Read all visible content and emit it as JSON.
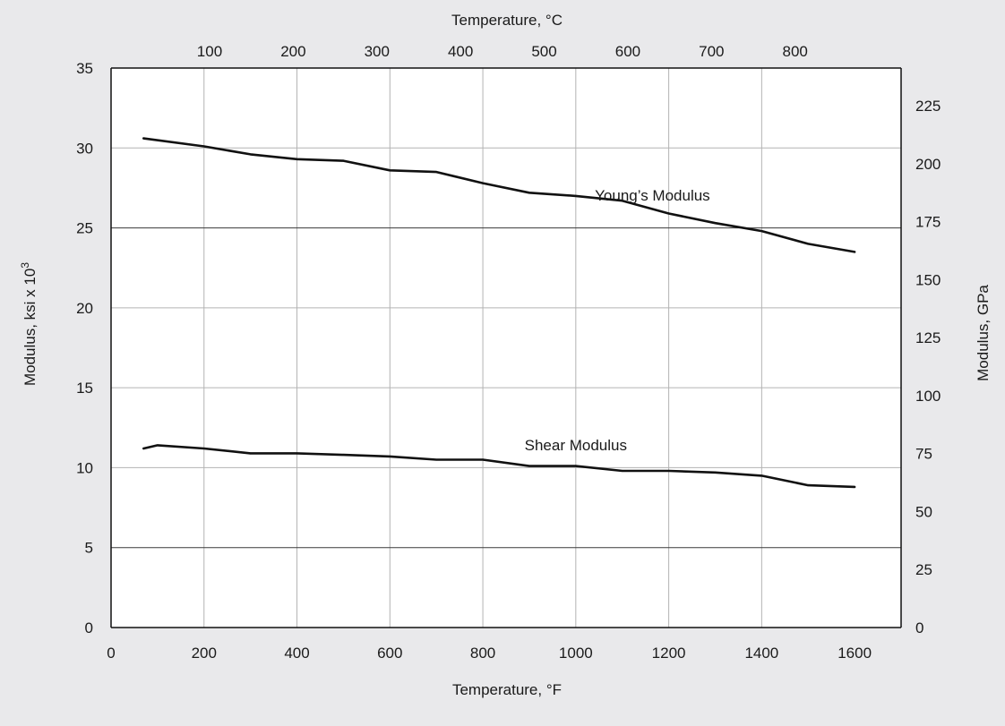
{
  "chart_data": {
    "type": "line",
    "xlabel": "Temperature, °F",
    "x2label": "Temperature, °C",
    "ylabel": "Modulus, ksi x 10",
    "ylabel_sup": "3",
    "y2label": "Modulus, GPa",
    "xlim": [
      0,
      1700
    ],
    "ylim": [
      0,
      35
    ],
    "x2lim_c": [
      -17.78,
      926.67
    ],
    "y2lim": [
      0,
      241.3
    ],
    "x_ticks": [
      0,
      200,
      400,
      600,
      800,
      1000,
      1200,
      1400,
      1600
    ],
    "x_tick_labels": [
      "0",
      "200",
      "400",
      "600",
      "800",
      "1000",
      "1200",
      "1400",
      "1600"
    ],
    "x2_ticks": [
      100,
      200,
      300,
      400,
      500,
      600,
      700,
      800
    ],
    "x2_tick_labels": [
      "100",
      "200",
      "300",
      "400",
      "500",
      "600",
      "700",
      "800"
    ],
    "y_ticks": [
      0,
      5,
      10,
      15,
      20,
      25,
      30,
      35
    ],
    "y_tick_labels": [
      "0",
      "5",
      "10",
      "15",
      "20",
      "25",
      "30",
      "35"
    ],
    "y2_ticks": [
      0,
      25,
      50,
      75,
      100,
      125,
      150,
      175,
      200,
      225
    ],
    "y2_tick_labels": [
      "0",
      "25",
      "50",
      "75",
      "100",
      "125",
      "150",
      "175",
      "200",
      "225"
    ],
    "vertical_grid": [
      200,
      400,
      600,
      800,
      1000,
      1200,
      1400
    ],
    "horizontal_grid_dark": [
      5,
      25
    ],
    "horizontal_grid_light": [
      10,
      15,
      20,
      30
    ],
    "series": [
      {
        "name": "Young’s Modulus",
        "x": [
          70,
          200,
          300,
          400,
          500,
          600,
          700,
          800,
          900,
          1000,
          1100,
          1200,
          1300,
          1400,
          1500,
          1600
        ],
        "values": [
          30.6,
          30.1,
          29.6,
          29.3,
          29.2,
          28.6,
          28.5,
          27.8,
          27.2,
          27.0,
          26.7,
          25.9,
          25.3,
          24.8,
          24.0,
          23.5
        ],
        "label_x": 1165,
        "label_y": 26.7
      },
      {
        "name": "Shear Modulus",
        "x": [
          70,
          100,
          200,
          300,
          400,
          500,
          600,
          700,
          800,
          900,
          1000,
          1100,
          1200,
          1300,
          1400,
          1500,
          1600
        ],
        "values": [
          11.2,
          11.4,
          11.2,
          10.9,
          10.9,
          10.8,
          10.7,
          10.5,
          10.5,
          10.1,
          10.1,
          9.8,
          9.8,
          9.7,
          9.5,
          8.9,
          8.8
        ],
        "label_x": 1000,
        "label_y": 11.1
      }
    ],
    "grid": true,
    "line_color": "#111111",
    "grid_color_light": "#b3b3b3",
    "grid_color_dark": "#3a3a3a",
    "plot_background": "#ffffff",
    "page_background": "#e9e9eb"
  }
}
